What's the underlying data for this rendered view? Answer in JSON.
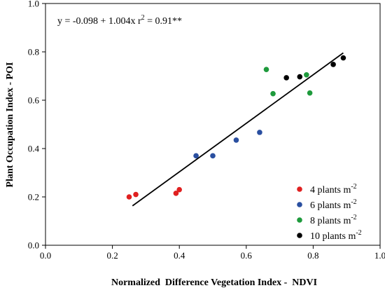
{
  "chart_data": {
    "type": "scatter",
    "xlabel": "Normalized  Difference Vegetation Index -  NDVI",
    "ylabel": "Plant Occupation Index - POI",
    "xlim": [
      0.0,
      1.0
    ],
    "ylim": [
      0.0,
      1.0
    ],
    "x_ticks": [
      "0.0",
      "0.2",
      "0.4",
      "0.6",
      "0.8",
      "1.0"
    ],
    "y_ticks": [
      "0.0",
      "0.2",
      "0.4",
      "0.6",
      "0.8",
      "1.0"
    ],
    "equation": "y = -0.098 + 1.004x     r",
    "r2_sup": "2",
    "r2_value": " = 0.91**",
    "fit_line": {
      "intercept": -0.098,
      "slope": 1.004,
      "x_range": [
        0.26,
        0.89
      ]
    },
    "grid": false,
    "legend_position": "bottom-right",
    "series": [
      {
        "name": "4 plants m",
        "unit_exponent": "-2",
        "color": "#e02020",
        "points": [
          [
            0.25,
            0.2
          ],
          [
            0.27,
            0.21
          ],
          [
            0.39,
            0.215
          ],
          [
            0.4,
            0.23
          ]
        ]
      },
      {
        "name": "6 plants m",
        "unit_exponent": "-2",
        "color": "#2a4fa0",
        "points": [
          [
            0.45,
            0.37
          ],
          [
            0.5,
            0.37
          ],
          [
            0.57,
            0.435
          ],
          [
            0.64,
            0.467
          ]
        ]
      },
      {
        "name": "8 plants m",
        "unit_exponent": "-2",
        "color": "#1e9a3c",
        "points": [
          [
            0.66,
            0.727
          ],
          [
            0.68,
            0.627
          ],
          [
            0.78,
            0.705
          ],
          [
            0.79,
            0.63
          ]
        ]
      },
      {
        "name": "10 plants m",
        "unit_exponent": "-2",
        "color": "#000000",
        "points": [
          [
            0.72,
            0.693
          ],
          [
            0.76,
            0.697
          ],
          [
            0.86,
            0.748
          ],
          [
            0.89,
            0.775
          ]
        ]
      }
    ]
  }
}
